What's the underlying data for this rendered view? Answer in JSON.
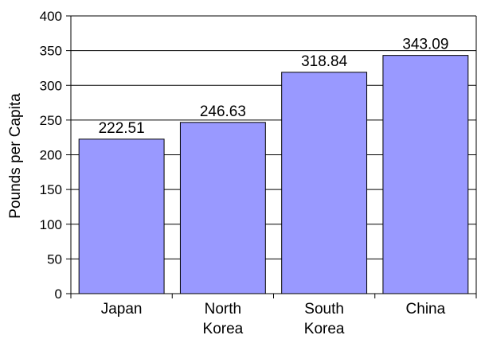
{
  "chart_data": {
    "type": "bar",
    "categories": [
      [
        "Japan"
      ],
      [
        "North",
        "Korea"
      ],
      [
        "South",
        "Korea"
      ],
      [
        "China"
      ]
    ],
    "values": [
      222.51,
      246.63,
      318.84,
      343.09
    ],
    "data_labels": [
      "222.51",
      "246.63",
      "318.84",
      "343.09"
    ],
    "title": "",
    "xlabel": "",
    "ylabel": "Pounds per Capita",
    "ylim": [
      0,
      400
    ],
    "yticks": [
      0,
      50,
      100,
      150,
      200,
      250,
      300,
      350,
      400
    ],
    "grid": true,
    "legend": "none",
    "bar_color": "#9999ff",
    "bar_edge_color": "#000000",
    "grid_color": "#000000"
  }
}
